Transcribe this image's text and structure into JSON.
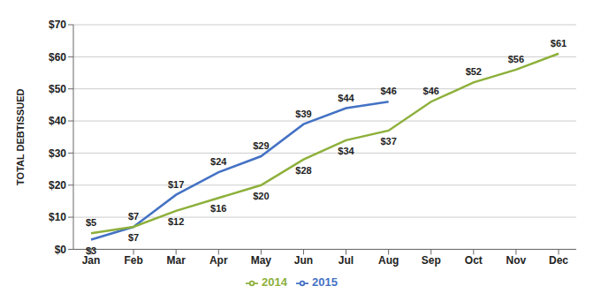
{
  "chart_data": {
    "type": "line",
    "ylabel": "TOTAL DEBTISSUED",
    "categories": [
      "Jan",
      "Feb",
      "Mar",
      "Apr",
      "May",
      "Jun",
      "Jul",
      "Aug",
      "Sep",
      "Oct",
      "Nov",
      "Dec"
    ],
    "series": [
      {
        "name": "2015",
        "color": "#4472C4",
        "values": [
          3,
          7,
          17,
          24,
          29,
          39,
          44,
          46,
          null,
          null,
          null,
          null
        ],
        "value_labels": [
          "$3",
          "$7",
          "$17",
          "$24",
          "$29",
          "$39",
          "$44",
          "$46",
          null,
          null,
          null,
          null
        ]
      },
      {
        "name": "2014",
        "color": "#8DB03B",
        "values": [
          5,
          7,
          12,
          16,
          20,
          28,
          34,
          37,
          46,
          52,
          56,
          61
        ],
        "value_labels": [
          "$5",
          "$7",
          "$12",
          "$16",
          "$20",
          "$28",
          "$34",
          "$37",
          "$46",
          "$52",
          "$56",
          "$61"
        ]
      }
    ],
    "ylim": [
      0,
      70
    ],
    "yticks": [
      {
        "value": 0,
        "label": "$0"
      },
      {
        "value": 10,
        "label": "$10"
      },
      {
        "value": 20,
        "label": "$20"
      },
      {
        "value": 30,
        "label": "$30"
      },
      {
        "value": 40,
        "label": "$40"
      },
      {
        "value": 50,
        "label": "$50"
      },
      {
        "value": 60,
        "label": "$60"
      },
      {
        "value": 70,
        "label": "$70"
      }
    ],
    "grid": true,
    "legend": "bottom",
    "data_labels": true,
    "marker": "none"
  }
}
